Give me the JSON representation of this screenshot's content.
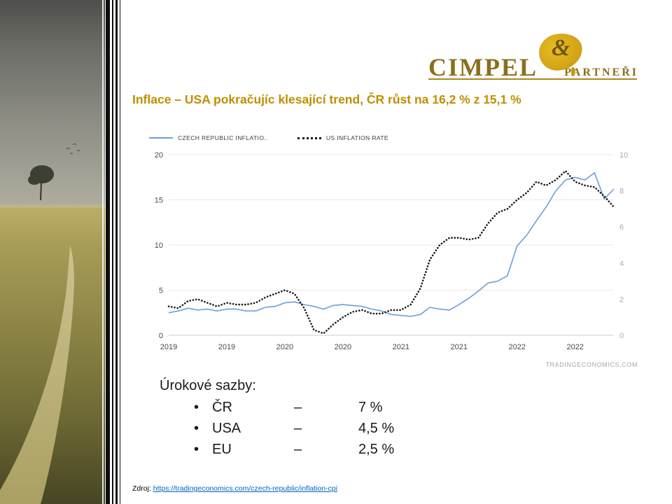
{
  "theme": {
    "brand_gold": "#8B6F1B",
    "blob_gold": "#D4A516",
    "title_gold": "#BF8F00",
    "link_blue": "#0563C1"
  },
  "logo": {
    "brand_main": "CIMPEL",
    "brand_amp": "&",
    "brand_sub": "PARTNEŘI"
  },
  "title": "Inflace – USA pokračujíc klesající trend, ČR růst na 16,2 % z 15,1 %",
  "chart_data": {
    "type": "line",
    "title": "",
    "legend": [
      {
        "label": "CZECH REPUBLIC INFLATIO..",
        "style": "solid",
        "color": "#6f9ed6",
        "axis": "left"
      },
      {
        "label": "US INFLATION RATE",
        "style": "dotted",
        "color": "#1a1a1a",
        "axis": "right"
      }
    ],
    "x_labels": [
      "2019",
      "2019",
      "2020",
      "2020",
      "2021",
      "2021",
      "2022",
      "2022"
    ],
    "x_label_indices": [
      0,
      6,
      12,
      18,
      24,
      30,
      36,
      42
    ],
    "left_axis": {
      "ticks": [
        0,
        5,
        10,
        15,
        20
      ],
      "range": [
        0,
        20
      ]
    },
    "right_axis": {
      "ticks": [
        0,
        2,
        4,
        6,
        8,
        10
      ],
      "range": [
        0,
        10
      ]
    },
    "grid": true,
    "legend_position": "top-left",
    "series": [
      {
        "name": "Czech Republic Inflation",
        "axis": "left",
        "color": "#6f9ed6",
        "style": "solid",
        "values": [
          2.5,
          2.7,
          3.0,
          2.8,
          2.9,
          2.7,
          2.9,
          2.9,
          2.7,
          2.7,
          3.1,
          3.2,
          3.6,
          3.7,
          3.4,
          3.2,
          2.9,
          3.3,
          3.4,
          3.3,
          3.2,
          2.9,
          2.7,
          2.3,
          2.2,
          2.1,
          2.3,
          3.1,
          2.9,
          2.8,
          3.4,
          4.1,
          4.9,
          5.8,
          6.0,
          6.6,
          9.9,
          11.1,
          12.7,
          14.2,
          16.0,
          17.2,
          17.5,
          17.2,
          18.0,
          15.1,
          16.2
        ]
      },
      {
        "name": "US Inflation Rate",
        "axis": "right",
        "color": "#1a1a1a",
        "style": "dotted",
        "values": [
          1.6,
          1.5,
          1.9,
          2.0,
          1.8,
          1.6,
          1.8,
          1.7,
          1.7,
          1.8,
          2.1,
          2.3,
          2.5,
          2.3,
          1.5,
          0.3,
          0.1,
          0.6,
          1.0,
          1.3,
          1.4,
          1.2,
          1.2,
          1.4,
          1.4,
          1.7,
          2.6,
          4.2,
          5.0,
          5.4,
          5.4,
          5.3,
          5.4,
          6.2,
          6.8,
          7.0,
          7.5,
          7.9,
          8.5,
          8.3,
          8.6,
          9.1,
          8.5,
          8.3,
          8.2,
          7.7,
          7.1
        ]
      }
    ],
    "watermark": "TRADINGECONOMICS.COM"
  },
  "rates": {
    "heading": "Úrokové sazby:",
    "bullet": "•",
    "items": [
      {
        "label": "ČR",
        "dash": "–",
        "value": "7 %"
      },
      {
        "label": "USA",
        "dash": "–",
        "value": "4,5 %"
      },
      {
        "label": "EU",
        "dash": "–",
        "value": "2,5 %"
      }
    ]
  },
  "source": {
    "prefix": "Zdroj:",
    "link": "https://tradingeconomics.com/czech-republic/inflation-cpi"
  }
}
